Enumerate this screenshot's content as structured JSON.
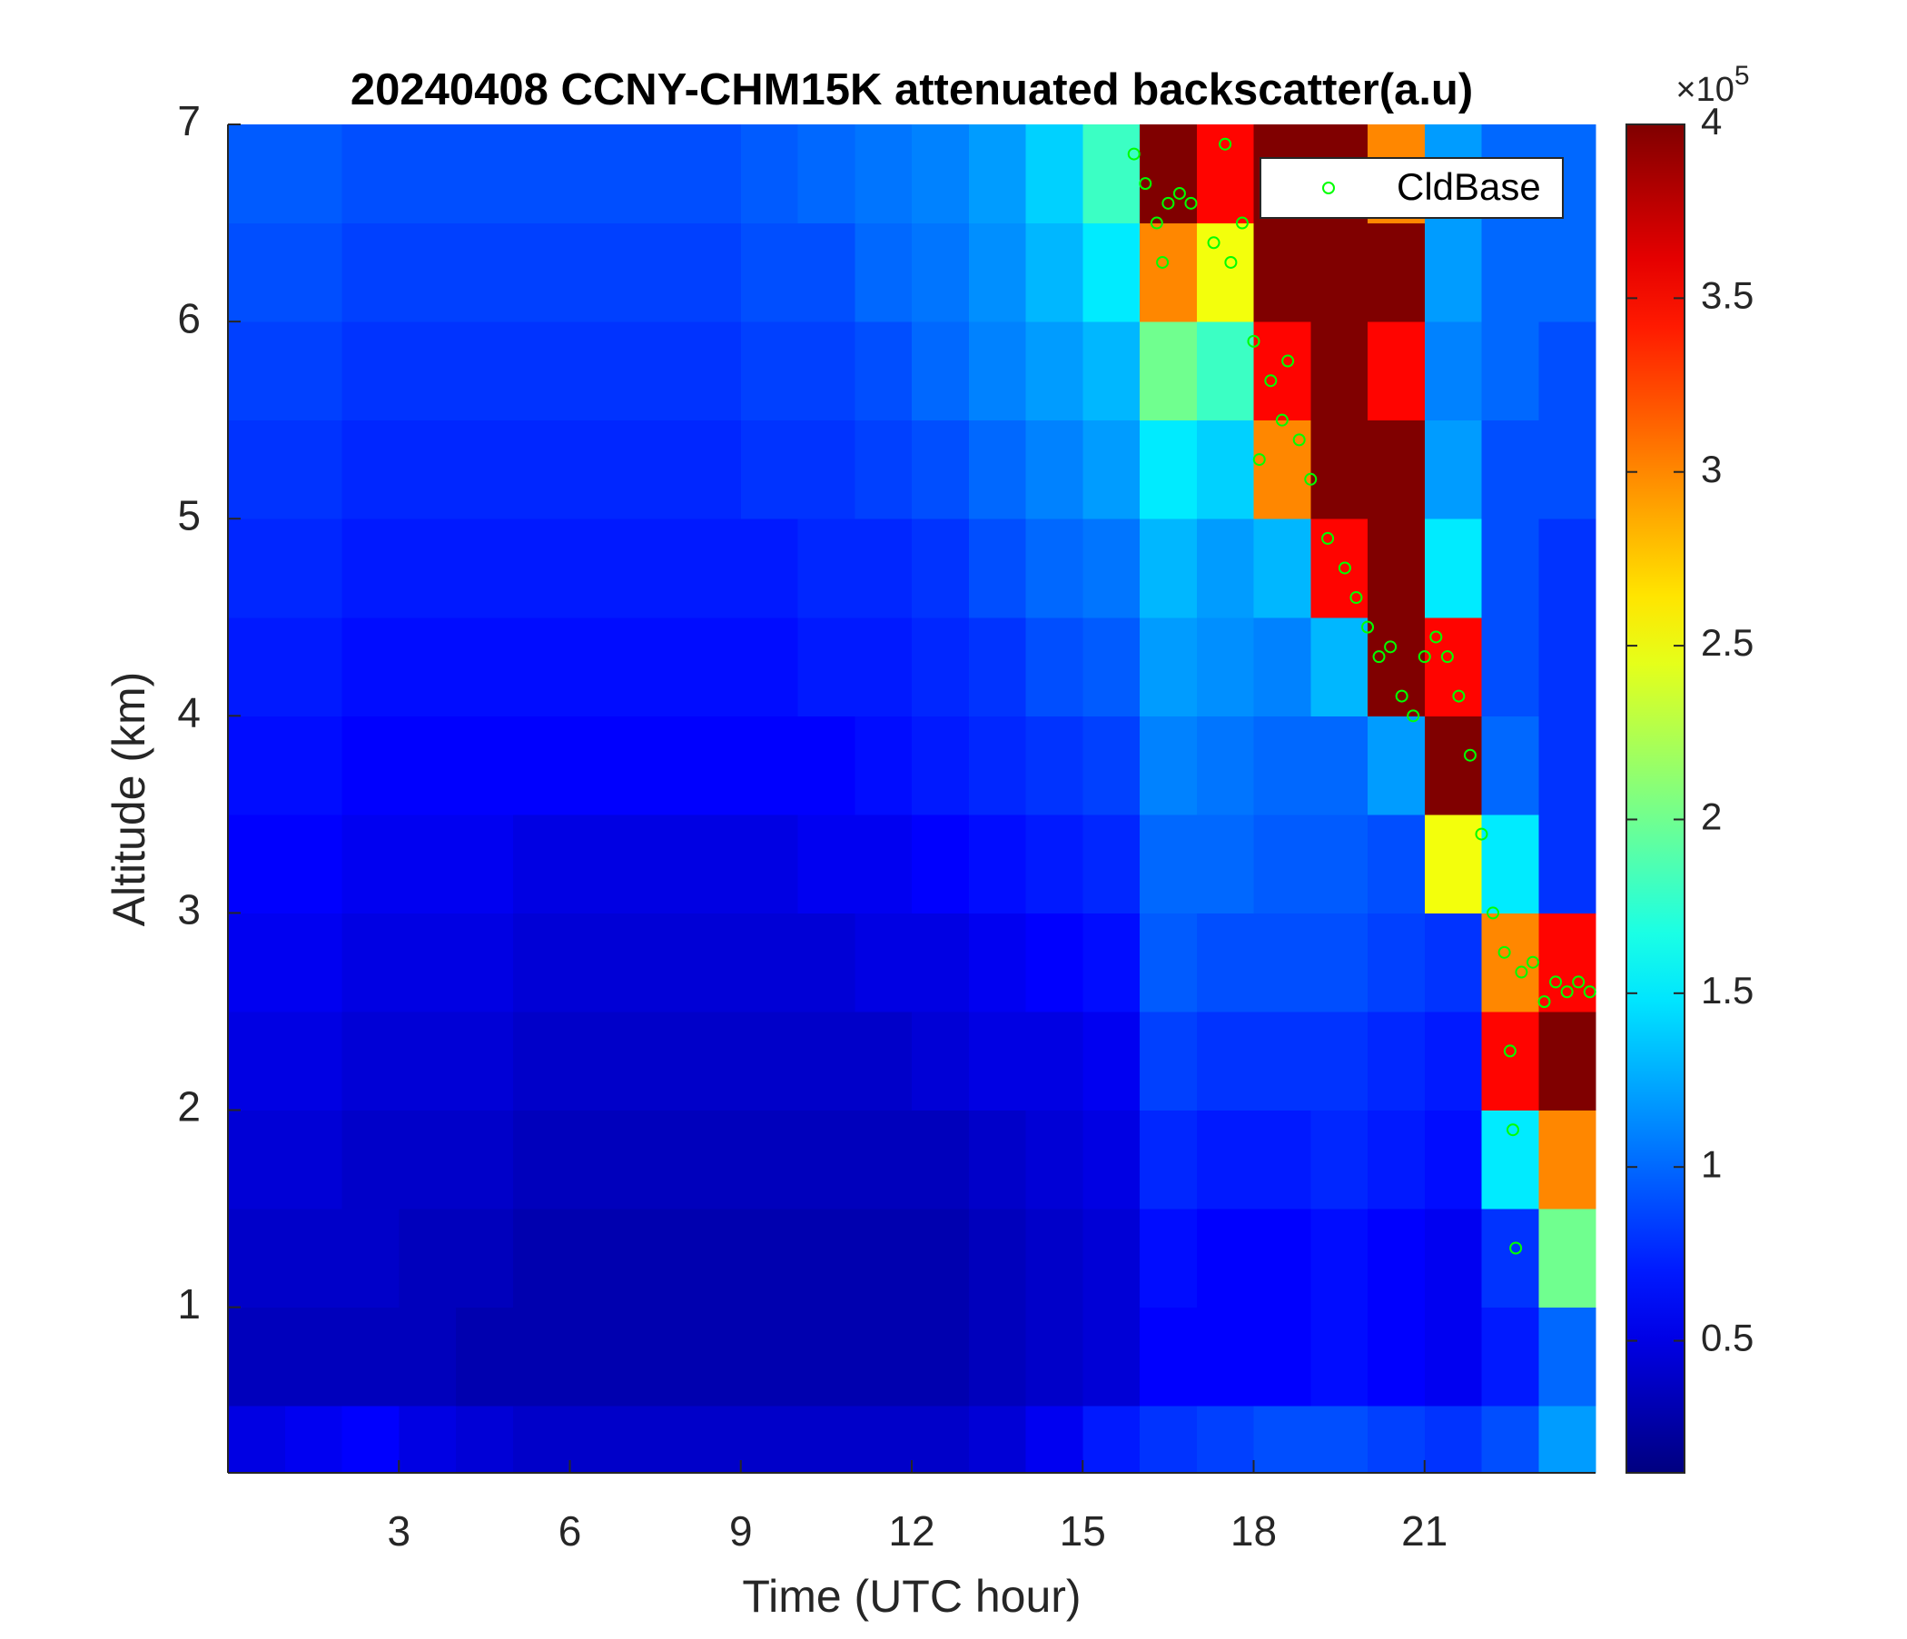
{
  "chart_data": {
    "type": "heatmap",
    "title": "20240408 CCNY-CHM15K attenuated backscatter(a.u)",
    "x_label": "Time (UTC hour)",
    "y_label": "Altitude (km)",
    "xlim": [
      0,
      24
    ],
    "ylim": [
      0.16,
      7
    ],
    "xticks": [
      3,
      6,
      9,
      12,
      15,
      18,
      21
    ],
    "yticks": [
      1,
      2,
      3,
      4,
      5,
      6,
      7
    ],
    "colormap": "jet",
    "clim": [
      0.12,
      4
    ],
    "colorbar_ticks": [
      0.5,
      1,
      1.5,
      2,
      2.5,
      3,
      3.5,
      4
    ],
    "colorbar_scale": "×10",
    "colorbar_exponent": "5",
    "x_edges": [
      0,
      1,
      2,
      3,
      4,
      5,
      6,
      7,
      8,
      9,
      10,
      11,
      12,
      13,
      14,
      15,
      16,
      17,
      18,
      19,
      20,
      21,
      22,
      23,
      24
    ],
    "y_edges": [
      0.16,
      0.5,
      1,
      1.5,
      2,
      2.5,
      3,
      3.5,
      4,
      4.5,
      5,
      5.5,
      6,
      6.5,
      7
    ],
    "z": [
      [
        0.5,
        0.55,
        0.6,
        0.5,
        0.45,
        0.4,
        0.4,
        0.4,
        0.4,
        0.4,
        0.4,
        0.4,
        0.4,
        0.45,
        0.55,
        0.7,
        0.8,
        0.85,
        0.9,
        0.9,
        0.85,
        0.8,
        0.9,
        1.2
      ],
      [
        0.35,
        0.35,
        0.35,
        0.35,
        0.3,
        0.3,
        0.3,
        0.3,
        0.3,
        0.3,
        0.3,
        0.3,
        0.3,
        0.35,
        0.4,
        0.45,
        0.6,
        0.6,
        0.6,
        0.65,
        0.6,
        0.55,
        0.7,
        1.0
      ],
      [
        0.4,
        0.4,
        0.4,
        0.35,
        0.35,
        0.3,
        0.3,
        0.3,
        0.3,
        0.3,
        0.3,
        0.3,
        0.3,
        0.35,
        0.4,
        0.45,
        0.65,
        0.6,
        0.6,
        0.65,
        0.6,
        0.55,
        0.8,
        2.0
      ],
      [
        0.45,
        0.45,
        0.4,
        0.4,
        0.4,
        0.35,
        0.35,
        0.35,
        0.35,
        0.35,
        0.35,
        0.35,
        0.35,
        0.4,
        0.45,
        0.5,
        0.75,
        0.7,
        0.7,
        0.75,
        0.7,
        0.65,
        1.5,
        3.0
      ],
      [
        0.5,
        0.5,
        0.45,
        0.45,
        0.45,
        0.4,
        0.4,
        0.4,
        0.4,
        0.4,
        0.4,
        0.4,
        0.45,
        0.5,
        0.5,
        0.55,
        0.85,
        0.8,
        0.8,
        0.8,
        0.75,
        0.7,
        3.5,
        4
      ],
      [
        0.55,
        0.55,
        0.5,
        0.5,
        0.5,
        0.45,
        0.45,
        0.45,
        0.45,
        0.45,
        0.45,
        0.5,
        0.5,
        0.55,
        0.6,
        0.65,
        0.95,
        0.9,
        0.9,
        0.9,
        0.85,
        0.8,
        3.0,
        3.5
      ],
      [
        0.6,
        0.6,
        0.55,
        0.55,
        0.55,
        0.5,
        0.5,
        0.5,
        0.5,
        0.5,
        0.55,
        0.55,
        0.6,
        0.65,
        0.7,
        0.75,
        1.0,
        1.0,
        0.95,
        0.95,
        0.9,
        2.5,
        1.5,
        0.8
      ],
      [
        0.65,
        0.65,
        0.6,
        0.6,
        0.6,
        0.6,
        0.6,
        0.6,
        0.6,
        0.6,
        0.6,
        0.65,
        0.7,
        0.75,
        0.8,
        0.85,
        1.1,
        1.05,
        1.0,
        1.0,
        1.2,
        4,
        1.0,
        0.8
      ],
      [
        0.7,
        0.7,
        0.65,
        0.65,
        0.65,
        0.65,
        0.65,
        0.65,
        0.65,
        0.65,
        0.7,
        0.7,
        0.75,
        0.8,
        0.9,
        0.95,
        1.2,
        1.15,
        1.1,
        1.3,
        4,
        3.5,
        0.9,
        0.8
      ],
      [
        0.75,
        0.75,
        0.7,
        0.7,
        0.7,
        0.7,
        0.7,
        0.7,
        0.7,
        0.7,
        0.75,
        0.75,
        0.8,
        0.9,
        1.0,
        1.05,
        1.3,
        1.2,
        1.3,
        3.5,
        4,
        1.5,
        0.9,
        0.8
      ],
      [
        0.8,
        0.8,
        0.75,
        0.75,
        0.75,
        0.75,
        0.75,
        0.75,
        0.75,
        0.8,
        0.8,
        0.85,
        0.9,
        1.0,
        1.1,
        1.2,
        1.5,
        1.4,
        3.0,
        4,
        4,
        1.2,
        0.9,
        0.9
      ],
      [
        0.85,
        0.85,
        0.8,
        0.8,
        0.8,
        0.8,
        0.8,
        0.8,
        0.8,
        0.85,
        0.85,
        0.9,
        1.0,
        1.1,
        1.2,
        1.3,
        2.0,
        1.8,
        3.5,
        4,
        3.5,
        1.1,
        1.0,
        0.9
      ],
      [
        0.9,
        0.9,
        0.85,
        0.85,
        0.85,
        0.85,
        0.85,
        0.85,
        0.85,
        0.9,
        0.9,
        1.0,
        1.05,
        1.15,
        1.3,
        1.5,
        3.0,
        2.5,
        4,
        4,
        4,
        1.2,
        1.0,
        1.0
      ],
      [
        0.95,
        0.95,
        0.9,
        0.9,
        0.9,
        0.9,
        0.9,
        0.9,
        0.9,
        0.95,
        1.0,
        1.05,
        1.1,
        1.2,
        1.4,
        1.8,
        4,
        3.5,
        4,
        4,
        3.0,
        1.2,
        1.0,
        1.0
      ]
    ],
    "overlay": {
      "type": "scatter",
      "name": "CldBase",
      "color": "#00ff00",
      "x": [
        15.9,
        16.1,
        16.3,
        16.4,
        16.5,
        16.7,
        16.9,
        17.3,
        17.5,
        17.6,
        17.8,
        18.0,
        18.1,
        18.3,
        18.5,
        18.6,
        18.8,
        19.0,
        19.3,
        19.6,
        19.8,
        20.0,
        20.2,
        20.4,
        20.6,
        20.8,
        21.0,
        21.2,
        21.4,
        21.6,
        21.8,
        22.0,
        22.2,
        22.4,
        22.5,
        22.55,
        22.6,
        22.7,
        22.9,
        23.1,
        23.3,
        23.5,
        23.7,
        23.9
      ],
      "y": [
        6.85,
        6.7,
        6.5,
        6.3,
        6.6,
        6.65,
        6.6,
        6.4,
        6.9,
        6.3,
        6.5,
        5.9,
        5.3,
        5.7,
        5.5,
        5.8,
        5.4,
        5.2,
        4.9,
        4.75,
        4.6,
        4.45,
        4.3,
        4.35,
        4.1,
        4.0,
        4.3,
        4.4,
        4.3,
        4.1,
        3.8,
        3.4,
        3.0,
        2.8,
        2.3,
        1.9,
        1.3,
        2.7,
        2.75,
        2.55,
        2.65,
        2.6,
        2.65,
        2.6
      ]
    },
    "legend": "upper right"
  }
}
